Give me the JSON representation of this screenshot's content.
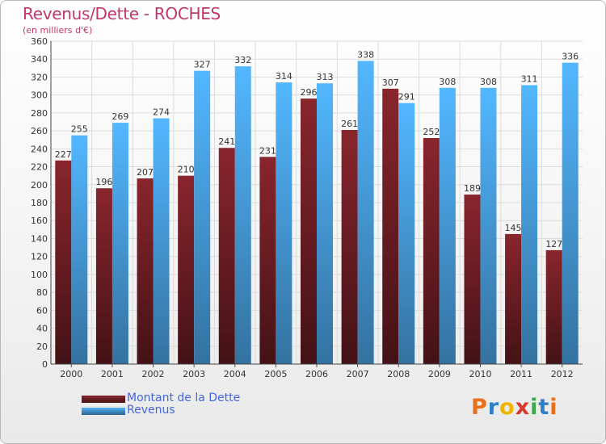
{
  "chart_data": {
    "type": "bar",
    "title": "Revenus/Dette - ROCHES",
    "subtitle": "(en milliers d'€)",
    "categories": [
      "2000",
      "2001",
      "2002",
      "2003",
      "2004",
      "2005",
      "2006",
      "2007",
      "2008",
      "2009",
      "2010",
      "2011",
      "2012"
    ],
    "series": [
      {
        "name": "Montant de la Dette",
        "color": "#7a2128",
        "values": [
          227,
          196,
          207,
          210,
          241,
          231,
          296,
          261,
          307,
          252,
          189,
          145,
          127
        ]
      },
      {
        "name": "Revenus",
        "color": "#4aa3e4",
        "values": [
          255,
          269,
          274,
          327,
          332,
          314,
          313,
          338,
          291,
          308,
          308,
          311,
          336
        ]
      }
    ],
    "ylim": [
      0,
      360
    ],
    "ytick_step": 20,
    "grid": true,
    "legend_position": "bottom-left"
  },
  "logo": {
    "text": "Proxiti",
    "colors": [
      "#e8701a",
      "#2e7fc6",
      "#f0b400",
      "#d63a2a",
      "#3aa84a",
      "#2e7fc6",
      "#e8701a"
    ]
  }
}
